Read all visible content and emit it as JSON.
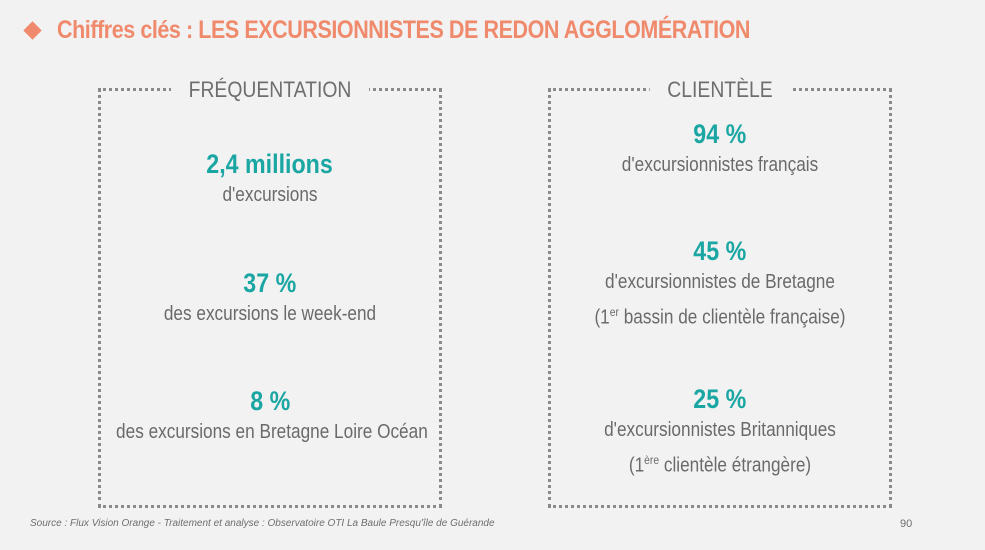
{
  "header": {
    "title": "Chiffres clés : LES EXCURSIONNISTES DE REDON AGGLOMÉRATION",
    "accent_color": "#f08a6c",
    "bullet_icon": "diamond-icon"
  },
  "frequentation": {
    "label": "FRÉQUENTATION",
    "stats": [
      {
        "value": "2,4 millions",
        "desc": "d'excursions"
      },
      {
        "value": "37 %",
        "desc": "des excursions le week-end"
      },
      {
        "value": "8 %",
        "desc": "des excursions en Bretagne Loire Océan"
      }
    ]
  },
  "clientele": {
    "label": "CLIENTÈLE",
    "stats": [
      {
        "value": "94 %",
        "desc": "d'excursionnistes français"
      },
      {
        "value": "45 %",
        "desc": "d'excursionnistes de Bretagne",
        "note_pre": "(1",
        "note_sup": "er",
        "note_post": " bassin de clientèle française)"
      },
      {
        "value": "25 %",
        "desc": "d'excursionnistes Britanniques",
        "note_pre": "(1",
        "note_sup": "ère",
        "note_post": " clientèle étrangère)"
      }
    ]
  },
  "footer": {
    "source": "Source : Flux Vision Orange - Traitement et analyse : Observatoire OTI La Baule Presqu'île de Guérande",
    "page": "90"
  },
  "colors": {
    "value": "#1aa6a2",
    "text": "#6a6a6a",
    "border": "#8a8a8a"
  }
}
